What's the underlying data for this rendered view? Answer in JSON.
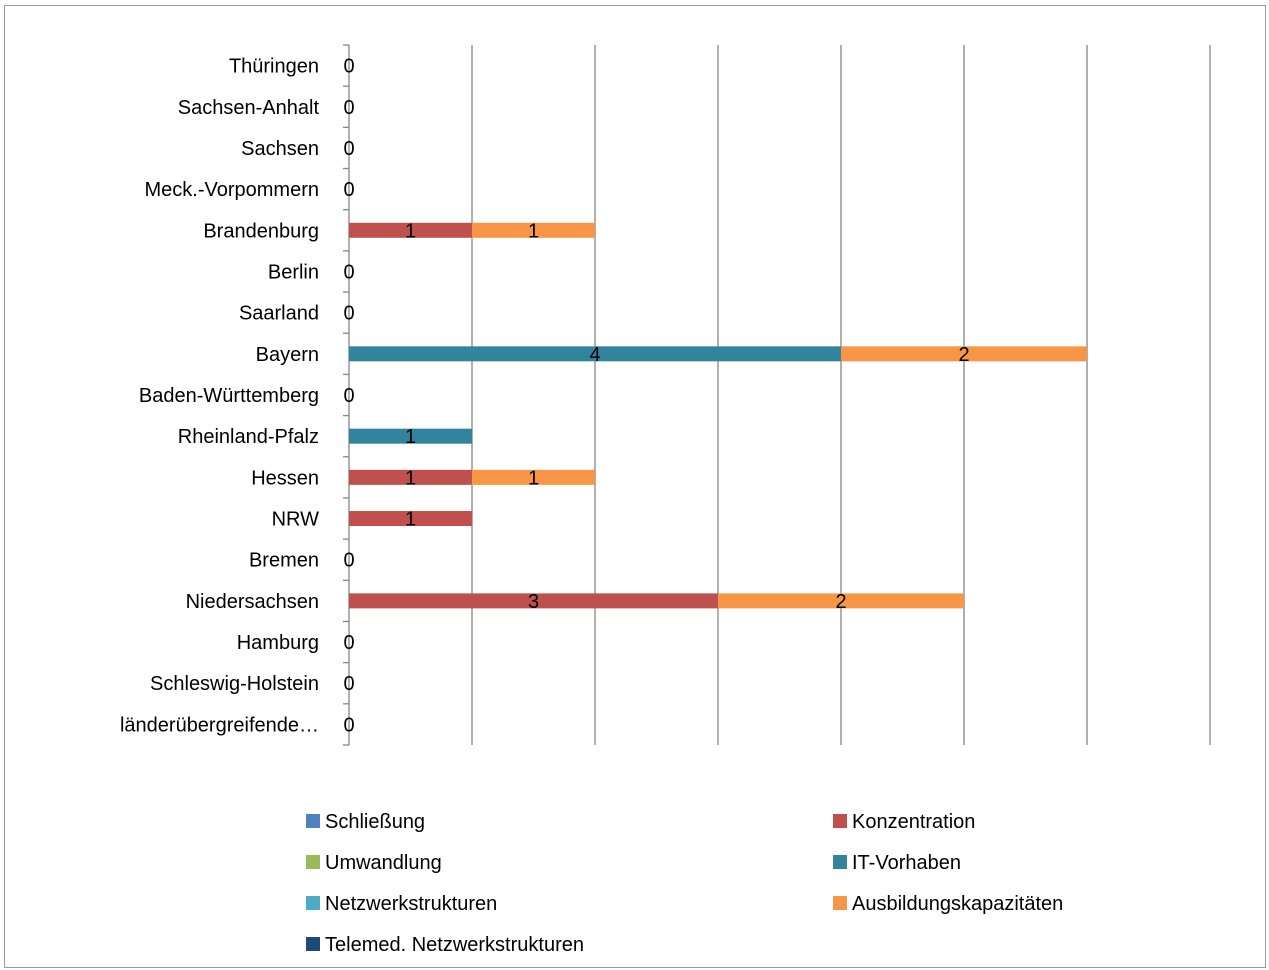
{
  "chart_data": {
    "type": "bar",
    "orientation": "horizontal",
    "stacked": true,
    "categories": [
      "länderübergreifende…",
      "Schleswig-Holstein",
      "Hamburg",
      "Niedersachsen",
      "Bremen",
      "NRW",
      "Hessen",
      "Rheinland-Pfalz",
      "Baden-Württemberg",
      "Bayern",
      "Saarland",
      "Berlin",
      "Brandenburg",
      "Meck.-Vorpommern",
      "Sachsen",
      "Sachsen-Anhalt",
      "Thüringen"
    ],
    "series": [
      {
        "name": "Schließung",
        "color": "#4f81bd",
        "values": [
          0,
          0,
          0,
          0,
          0,
          0,
          0,
          0,
          0,
          0,
          0,
          0,
          0,
          0,
          0,
          0,
          0
        ]
      },
      {
        "name": "Konzentration",
        "color": "#c0504d",
        "values": [
          0,
          0,
          0,
          3,
          0,
          1,
          1,
          0,
          0,
          0,
          0,
          0,
          1,
          0,
          0,
          0,
          0
        ]
      },
      {
        "name": "Umwandlung",
        "color": "#9bbb59",
        "values": [
          0,
          0,
          0,
          0,
          0,
          0,
          0,
          0,
          0,
          0,
          0,
          0,
          0,
          0,
          0,
          0,
          0
        ]
      },
      {
        "name": "IT-Vorhaben",
        "color": "#31849b",
        "values": [
          0,
          0,
          0,
          0,
          0,
          0,
          0,
          1,
          0,
          4,
          0,
          0,
          0,
          0,
          0,
          0,
          0
        ]
      },
      {
        "name": "Netzwerkstrukturen",
        "color": "#4bacc6",
        "values": [
          0,
          0,
          0,
          0,
          0,
          0,
          0,
          0,
          0,
          0,
          0,
          0,
          0,
          0,
          0,
          0,
          0
        ]
      },
      {
        "name": "Ausbildungskapazitäten",
        "color": "#f79646",
        "values": [
          0,
          0,
          0,
          2,
          0,
          0,
          1,
          0,
          0,
          2,
          0,
          0,
          1,
          0,
          0,
          0,
          0
        ]
      },
      {
        "name": "Telemed. Netzwerkstrukturen",
        "color": "#1f497d",
        "values": [
          0,
          0,
          0,
          0,
          0,
          0,
          0,
          0,
          0,
          0,
          0,
          0,
          0,
          0,
          0,
          0,
          0
        ]
      }
    ],
    "xlim": [
      0,
      7
    ],
    "grid": true,
    "legend_position": "bottom"
  }
}
